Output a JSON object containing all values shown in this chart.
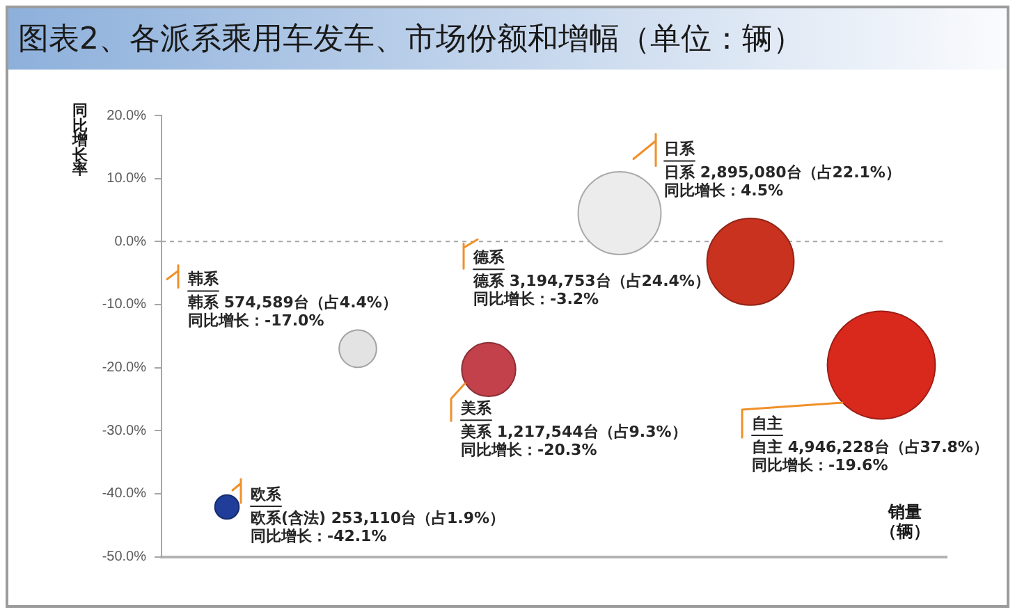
{
  "chart_data": {
    "type": "bubble",
    "title": "图表2、各派系乘用车发车、市场份额和增幅（单位：辆）",
    "xlabel": "销量（辆）",
    "ylabel": "同比增长率",
    "categories": [
      null,
      null,
      null,
      null,
      null,
      null
    ],
    "values": [
      -42.1,
      -17.0,
      -20.3,
      4.5,
      -3.2,
      -19.6
    ],
    "colors": [
      "#1f3d99",
      "#e3e3e3",
      "#c2414b",
      "#ececec",
      "#c9321e",
      "#d9281c"
    ],
    "sizes": [
      0.05,
      0.12,
      0.25,
      0.59,
      0.65,
      1
    ],
    "value_labels": [
      "欧系(含法) 253,110台（占1.9%）同比增长：-42.1%",
      "韩系 574,589台（占4.4%）同比增长：-17.0%",
      "美系 1,217,544台（占9.3%）同比增长：-20.3%",
      "日系 2,895,080台（占22.1%）同比增长：4.5%",
      "德系 3,194,753台（占24.4%）同比增长：-3.2%",
      "自主 4,946,228台（占37.8%）同比增长：-19.6%"
    ],
    "annotations": [
      "欧系",
      "韩系",
      "美系",
      "日系",
      "德系",
      "自主"
    ],
    "ylim": [
      -50,
      20
    ],
    "yticks": [
      {
        "value": 20,
        "label": "20.0%"
      },
      {
        "value": 10,
        "label": "10.0%"
      },
      {
        "value": 0,
        "label": "0.0%"
      },
      {
        "value": -10,
        "label": "-10.0%"
      },
      {
        "value": -20,
        "label": "-20.0%"
      },
      {
        "value": -30,
        "label": "-30.0%"
      },
      {
        "value": -40,
        "label": "-40.0%"
      },
      {
        "value": -50,
        "label": "-50.0%"
      }
    ],
    "tick_labels": "y",
    "grid": false,
    "legend": false,
    "ref_lines": [
      {
        "axis": "y",
        "value": 0,
        "color": "#a6a6a6",
        "line_style": "dashed"
      }
    ]
  }
}
